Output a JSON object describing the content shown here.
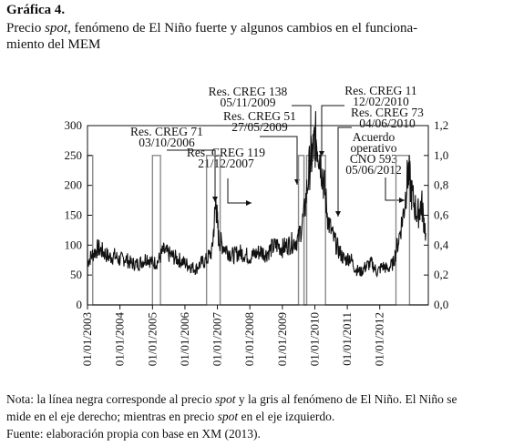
{
  "figure_label": "Gráfica 4.",
  "caption": {
    "part1": "Precio ",
    "italic": "spot",
    "part2": ", fenómeno de El Niño fuerte y algunos cambios en el funciona-",
    "line2": "miento del MEM"
  },
  "notes": {
    "line1_a": "Nota: la línea negra corresponde al precio ",
    "line1_italic": "spot",
    "line1_b": " y la gris al fenómeno de El Niño. El Niño se",
    "line2_a": "mide en el eje derecho; mientras en precio ",
    "line2_italic": "spot",
    "line2_b": " en el eje izquierdo.",
    "source": "Fuente: elaboración propia con base en XM (2013)."
  },
  "chart_data": {
    "type": "line",
    "x_range": [
      "2003-01-01",
      "2013-06-30"
    ],
    "y_left": {
      "range": [
        0,
        300
      ],
      "ticks": [
        "0",
        "50",
        "100",
        "150",
        "200",
        "250",
        "300"
      ]
    },
    "y_right": {
      "range": [
        0,
        1.2
      ],
      "ticks": [
        "0,0",
        "0,2",
        "0,4",
        "0,6",
        "0,8",
        "1,0",
        "1,2"
      ]
    },
    "x_ticks": [
      "01/01/2003",
      "01/01/2004",
      "01/01/2005",
      "01/01/2006",
      "01/01/2007",
      "01/01/2008",
      "01/01/2009",
      "01/01/2010",
      "01/01/2011",
      "01/01/2012"
    ],
    "series": [
      {
        "axis": "left",
        "color": "#111111",
        "points": [
          [
            "2003-01-01",
            72
          ],
          [
            "2003-03-01",
            85
          ],
          [
            "2003-05-01",
            95
          ],
          [
            "2003-07-01",
            88
          ],
          [
            "2003-09-01",
            80
          ],
          [
            "2003-11-01",
            82
          ],
          [
            "2004-01-01",
            75
          ],
          [
            "2004-03-01",
            78
          ],
          [
            "2004-05-01",
            70
          ],
          [
            "2004-07-01",
            68
          ],
          [
            "2004-09-01",
            72
          ],
          [
            "2004-11-01",
            80
          ],
          [
            "2005-01-01",
            70
          ],
          [
            "2005-03-01",
            72
          ],
          [
            "2005-05-01",
            90
          ],
          [
            "2005-07-01",
            85
          ],
          [
            "2005-09-01",
            80
          ],
          [
            "2005-11-01",
            75
          ],
          [
            "2006-01-01",
            70
          ],
          [
            "2006-03-01",
            65
          ],
          [
            "2006-05-01",
            60
          ],
          [
            "2006-07-01",
            70
          ],
          [
            "2006-09-01",
            75
          ],
          [
            "2006-11-01",
            90
          ],
          [
            "2006-12-15",
            172
          ],
          [
            "2007-01-15",
            110
          ],
          [
            "2007-03-01",
            100
          ],
          [
            "2007-05-01",
            90
          ],
          [
            "2007-07-01",
            82
          ],
          [
            "2007-09-01",
            88
          ],
          [
            "2007-11-01",
            85
          ],
          [
            "2008-01-01",
            80
          ],
          [
            "2008-03-01",
            85
          ],
          [
            "2008-05-01",
            90
          ],
          [
            "2008-07-01",
            85
          ],
          [
            "2008-09-01",
            95
          ],
          [
            "2008-11-01",
            100
          ],
          [
            "2009-01-01",
            95
          ],
          [
            "2009-03-01",
            100
          ],
          [
            "2009-05-01",
            105
          ],
          [
            "2009-07-01",
            110
          ],
          [
            "2009-09-01",
            150
          ],
          [
            "2009-11-01",
            230
          ],
          [
            "2009-12-15",
            260
          ],
          [
            "2010-01-15",
            280
          ],
          [
            "2010-03-01",
            250
          ],
          [
            "2010-04-15",
            200
          ],
          [
            "2010-06-01",
            140
          ],
          [
            "2010-08-01",
            110
          ],
          [
            "2010-10-01",
            90
          ],
          [
            "2010-12-01",
            75
          ],
          [
            "2011-02-01",
            80
          ],
          [
            "2011-04-01",
            60
          ],
          [
            "2011-06-01",
            55
          ],
          [
            "2011-08-01",
            65
          ],
          [
            "2011-10-01",
            70
          ],
          [
            "2011-12-01",
            55
          ],
          [
            "2012-02-01",
            65
          ],
          [
            "2012-04-01",
            60
          ],
          [
            "2012-06-01",
            70
          ],
          [
            "2012-08-01",
            110
          ],
          [
            "2012-10-01",
            160
          ],
          [
            "2012-11-15",
            225
          ],
          [
            "2013-01-01",
            180
          ],
          [
            "2013-03-01",
            150
          ],
          [
            "2013-04-15",
            170
          ],
          [
            "2013-06-01",
            120
          ]
        ]
      },
      {
        "axis": "right",
        "color": "#8a8a8a",
        "type": "step",
        "points": [
          [
            "2003-01-01",
            1.0
          ],
          [
            "2003-03-01",
            0.0
          ],
          [
            "2005-01-01",
            1.0
          ],
          [
            "2005-04-01",
            0.0
          ],
          [
            "2006-09-01",
            1.0
          ],
          [
            "2007-02-01",
            0.0
          ],
          [
            "2009-07-01",
            1.0
          ],
          [
            "2009-09-01",
            0.0
          ],
          [
            "2009-10-01",
            1.0
          ],
          [
            "2010-05-01",
            0.0
          ],
          [
            "2012-07-01",
            1.0
          ],
          [
            "2012-12-01",
            0.0
          ]
        ]
      }
    ],
    "annotations": [
      {
        "lines": [
          "Res. CREG 71",
          "03/10/2006"
        ],
        "target": "2006-10-03"
      },
      {
        "lines": [
          "Res. CREG 119",
          "21/12/2007"
        ],
        "target": "2007-12-21"
      },
      {
        "lines": [
          "Res. CREG 138",
          "05/11/2009"
        ],
        "target": "2009-11-05"
      },
      {
        "lines": [
          "Res. CREG 51",
          "27/05/2009"
        ],
        "target": "2009-05-27"
      },
      {
        "lines": [
          "Res. CREG 11",
          "12/02/2010"
        ],
        "target": "2010-02-12"
      },
      {
        "lines": [
          "Res. CREG 73",
          "04/06/2010"
        ],
        "target": "2010-06-04"
      },
      {
        "lines": [
          "Acuerdo",
          "operativo",
          "CNO 593",
          "05/06/2012"
        ],
        "target": "2012-06-05"
      }
    ]
  }
}
